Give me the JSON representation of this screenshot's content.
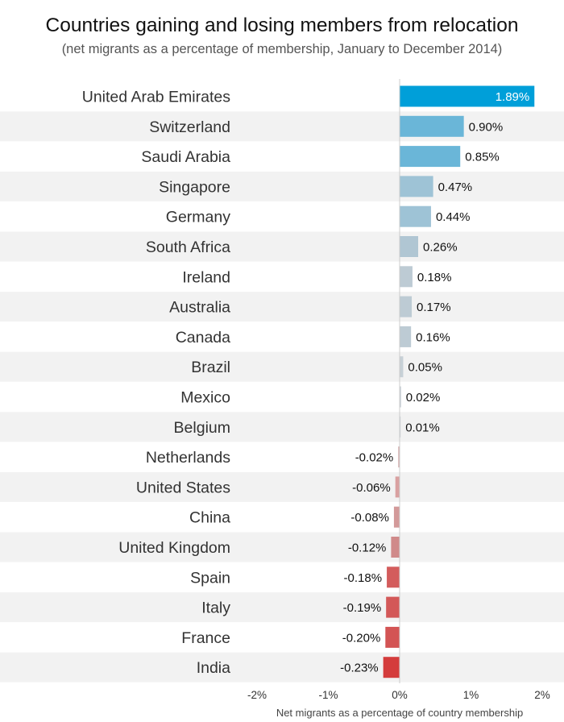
{
  "chart_data": {
    "type": "bar",
    "orientation": "horizontal",
    "title": "Countries gaining and losing members from relocation",
    "subtitle": "(net migrants as a percentage of membership, January to December 2014)",
    "xlabel": "Net migrants as a percentage of country membership",
    "xlim": [
      -2,
      2
    ],
    "x_ticks": [
      -2,
      -1,
      0,
      1,
      2
    ],
    "x_tick_labels": [
      "-2%",
      "-1%",
      "0%",
      "1%",
      "2%"
    ],
    "grid": false,
    "categories": [
      "United Arab Emirates",
      "Switzerland",
      "Saudi Arabia",
      "Singapore",
      "Germany",
      "South Africa",
      "Ireland",
      "Australia",
      "Canada",
      "Brazil",
      "Mexico",
      "Belgium",
      "Netherlands",
      "United States",
      "China",
      "United Kingdom",
      "Spain",
      "Italy",
      "France",
      "India"
    ],
    "values": [
      1.89,
      0.9,
      0.85,
      0.47,
      0.44,
      0.26,
      0.18,
      0.17,
      0.16,
      0.05,
      0.02,
      0.01,
      -0.02,
      -0.06,
      -0.08,
      -0.12,
      -0.18,
      -0.19,
      -0.2,
      -0.23
    ],
    "value_labels": [
      "1.89%",
      "0.90%",
      "0.85%",
      "0.47%",
      "0.44%",
      "0.26%",
      "0.18%",
      "0.17%",
      "0.16%",
      "0.05%",
      "0.02%",
      "0.01%",
      "-0.02%",
      "-0.06%",
      "-0.08%",
      "-0.12%",
      "-0.18%",
      "-0.19%",
      "-0.20%",
      "-0.23%"
    ],
    "bar_colors": [
      "#009fd9",
      "#6ab6d8",
      "#6ab6d8",
      "#9ec3d6",
      "#9ec3d6",
      "#b0c6d3",
      "#bdcbd4",
      "#bdcbd4",
      "#bdcbd4",
      "#c7d0d6",
      "#c7d0d6",
      "#c7d0d6",
      "#d4b0b0",
      "#d9a0a0",
      "#d39a9a",
      "#d08a8a",
      "#d35c5c",
      "#d35858",
      "#d35454",
      "#d43c3c"
    ],
    "value_label_inside_color": "#ffffff",
    "row_stripe_color": "#f2f2f2"
  }
}
